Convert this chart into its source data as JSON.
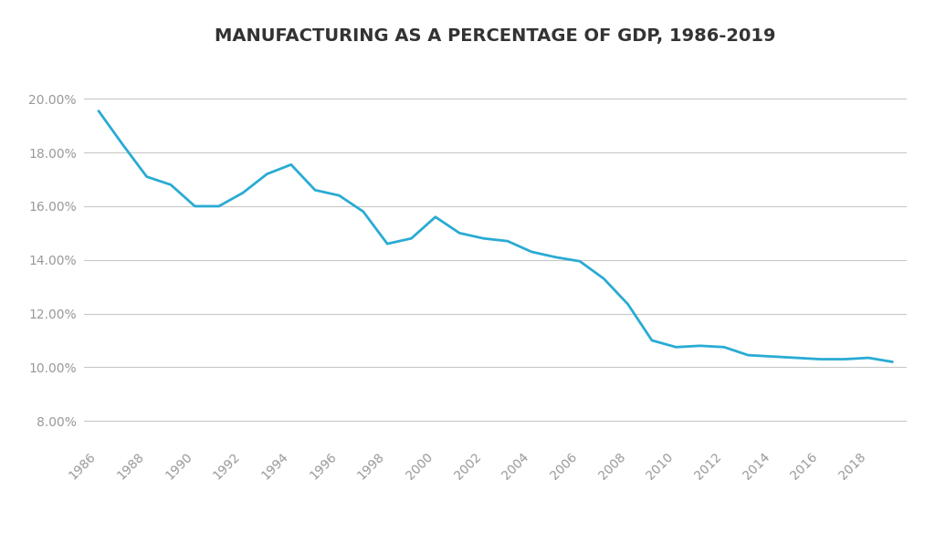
{
  "title": "MANUFACTURING AS A PERCENTAGE OF GDP, 1986-2019",
  "years": [
    1986,
    1987,
    1988,
    1989,
    1990,
    1991,
    1992,
    1993,
    1994,
    1995,
    1996,
    1997,
    1998,
    1999,
    2000,
    2001,
    2002,
    2003,
    2004,
    2005,
    2006,
    2007,
    2008,
    2009,
    2010,
    2011,
    2012,
    2013,
    2014,
    2015,
    2016,
    2017,
    2018,
    2019
  ],
  "values": [
    0.1955,
    0.183,
    0.171,
    0.168,
    0.16,
    0.16,
    0.165,
    0.172,
    0.1755,
    0.166,
    0.164,
    0.158,
    0.146,
    0.148,
    0.156,
    0.15,
    0.148,
    0.147,
    0.143,
    0.141,
    0.1395,
    0.133,
    0.1235,
    0.11,
    0.1075,
    0.108,
    0.1075,
    0.1045,
    0.104,
    0.1035,
    0.103,
    0.103,
    0.1035,
    0.102
  ],
  "line_color": "#29ABD4",
  "line_width": 2.0,
  "background_color": "#FFFFFF",
  "grid_color": "#C8C8C8",
  "title_fontsize": 14,
  "title_fontweight": "bold",
  "title_color": "#333333",
  "tick_label_color": "#999999",
  "tick_label_fontsize": 10,
  "ytick_labels": [
    "8.00%",
    "10.00%",
    "12.00%",
    "14.00%",
    "16.00%",
    "18.00%",
    "20.00%"
  ],
  "ytick_values": [
    0.08,
    0.1,
    0.12,
    0.14,
    0.16,
    0.18,
    0.2
  ],
  "ylim": [
    0.072,
    0.213
  ],
  "xlim_left": 1985.4,
  "xlim_right": 2019.6,
  "xtick_values": [
    1986,
    1988,
    1990,
    1992,
    1994,
    1996,
    1998,
    2000,
    2002,
    2004,
    2006,
    2008,
    2010,
    2012,
    2014,
    2016,
    2018
  ]
}
